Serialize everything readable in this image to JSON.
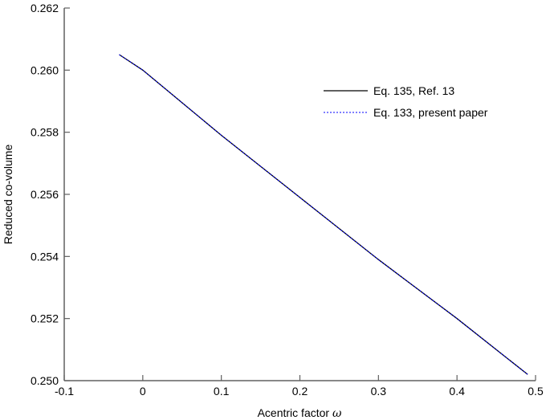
{
  "chart_data": {
    "type": "line",
    "title": "",
    "xlabel": "Acentric factor ω",
    "xlabel_text": "Acentric factor ",
    "xlabel_symbol": "ω",
    "ylabel": "Reduced co-volume",
    "xlim": [
      -0.1,
      0.5
    ],
    "ylim": [
      0.25,
      0.262
    ],
    "xticks": [
      "-0.1",
      "0",
      "0.1",
      "0.2",
      "0.3",
      "0.4",
      "0.5"
    ],
    "xtick_values": [
      -0.1,
      0,
      0.1,
      0.2,
      0.3,
      0.4,
      0.5
    ],
    "yticks": [
      "0.250",
      "0.252",
      "0.254",
      "0.256",
      "0.258",
      "0.260",
      "0.262"
    ],
    "ytick_values": [
      0.25,
      0.252,
      0.254,
      0.256,
      0.258,
      0.26,
      0.262
    ],
    "grid": false,
    "legend_position": "upper right",
    "x": [
      -0.03,
      0.0,
      0.1,
      0.2,
      0.3,
      0.4,
      0.49
    ],
    "series": [
      {
        "name": "Eq. 135, Ref. 13",
        "style": "solid",
        "color": "#000000",
        "values": [
          0.2605,
          0.26,
          0.2579,
          0.2559,
          0.2539,
          0.252,
          0.2502
        ]
      },
      {
        "name": "Eq. 133, present paper",
        "style": "dashed",
        "color": "#0000ff",
        "values": [
          0.2605,
          0.26,
          0.2579,
          0.2559,
          0.2539,
          0.252,
          0.2502
        ]
      }
    ]
  },
  "colors": {
    "axis": "#606060",
    "text": "#000000",
    "series_1": "#000000",
    "series_2": "#0000ff"
  }
}
